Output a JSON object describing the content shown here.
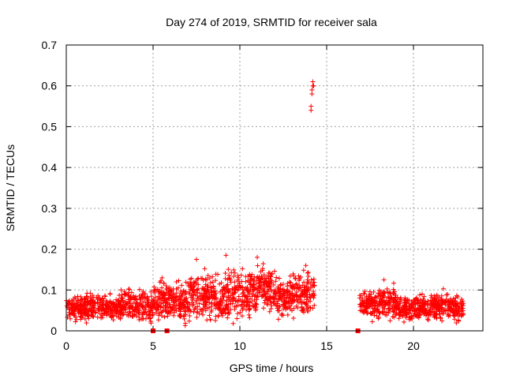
{
  "chart_data": {
    "type": "scatter",
    "title": "Day 274 of 2019, SRMTID for receiver sala",
    "xlabel": "GPS time / hours",
    "ylabel": "SRMTID / TECUs",
    "xlim": [
      0,
      24
    ],
    "ylim": [
      0,
      0.7
    ],
    "grid": true,
    "marker": "+",
    "series_color": "#ff0000",
    "x_ticks": [
      0,
      5,
      10,
      15,
      20
    ],
    "x_tick_labels": [
      "0",
      "5",
      "10",
      "15",
      "20"
    ],
    "y_ticks": [
      0,
      0.1,
      0.2,
      0.3,
      0.4,
      0.5,
      0.6,
      0.7
    ],
    "y_tick_labels": [
      "0",
      "0.1",
      "0.2",
      "0.3",
      "0.4",
      "0.5",
      "0.6",
      "0.7"
    ],
    "segments": [
      {
        "x_start": 0.0,
        "x_end": 1.0,
        "y_mean": 0.055,
        "y_spread": 0.025
      },
      {
        "x_start": 1.0,
        "x_end": 2.0,
        "y_mean": 0.06,
        "y_spread": 0.03
      },
      {
        "x_start": 2.0,
        "x_end": 3.0,
        "y_mean": 0.055,
        "y_spread": 0.025
      },
      {
        "x_start": 3.0,
        "x_end": 4.0,
        "y_mean": 0.065,
        "y_spread": 0.03
      },
      {
        "x_start": 4.0,
        "x_end": 5.0,
        "y_mean": 0.06,
        "y_spread": 0.035
      },
      {
        "x_start": 5.0,
        "x_end": 6.0,
        "y_mean": 0.075,
        "y_spread": 0.045
      },
      {
        "x_start": 6.0,
        "x_end": 7.0,
        "y_mean": 0.07,
        "y_spread": 0.04
      },
      {
        "x_start": 7.0,
        "x_end": 8.0,
        "y_mean": 0.085,
        "y_spread": 0.05
      },
      {
        "x_start": 8.0,
        "x_end": 9.0,
        "y_mean": 0.08,
        "y_spread": 0.045
      },
      {
        "x_start": 9.0,
        "x_end": 10.0,
        "y_mean": 0.09,
        "y_spread": 0.05
      },
      {
        "x_start": 10.0,
        "x_end": 11.0,
        "y_mean": 0.095,
        "y_spread": 0.05
      },
      {
        "x_start": 11.0,
        "x_end": 12.0,
        "y_mean": 0.1,
        "y_spread": 0.045
      },
      {
        "x_start": 12.0,
        "x_end": 13.0,
        "y_mean": 0.08,
        "y_spread": 0.04
      },
      {
        "x_start": 13.0,
        "x_end": 13.7,
        "y_mean": 0.09,
        "y_spread": 0.045
      },
      {
        "x_start": 13.7,
        "x_end": 14.3,
        "y_mean": 0.095,
        "y_spread": 0.04
      },
      {
        "x_start": 16.9,
        "x_end": 18.0,
        "y_mean": 0.065,
        "y_spread": 0.03
      },
      {
        "x_start": 18.0,
        "x_end": 19.0,
        "y_mean": 0.07,
        "y_spread": 0.035
      },
      {
        "x_start": 19.0,
        "x_end": 20.0,
        "y_mean": 0.055,
        "y_spread": 0.025
      },
      {
        "x_start": 20.0,
        "x_end": 21.0,
        "y_mean": 0.055,
        "y_spread": 0.025
      },
      {
        "x_start": 21.0,
        "x_end": 22.0,
        "y_mean": 0.06,
        "y_spread": 0.03
      },
      {
        "x_start": 22.0,
        "x_end": 22.9,
        "y_mean": 0.055,
        "y_spread": 0.025
      }
    ],
    "outliers": [
      {
        "x": 14.1,
        "y": 0.54
      },
      {
        "x": 14.1,
        "y": 0.55
      },
      {
        "x": 14.15,
        "y": 0.58
      },
      {
        "x": 14.15,
        "y": 0.59
      },
      {
        "x": 14.2,
        "y": 0.6
      },
      {
        "x": 14.2,
        "y": 0.61
      },
      {
        "x": 14.25,
        "y": 0.6
      },
      {
        "x": 9.2,
        "y": 0.185
      },
      {
        "x": 7.5,
        "y": 0.175
      },
      {
        "x": 11.0,
        "y": 0.18
      },
      {
        "x": 13.8,
        "y": 0.16
      },
      {
        "x": 18.3,
        "y": 0.125
      }
    ],
    "zero_markers": [
      {
        "x": 5.0,
        "y": 0
      },
      {
        "x": 5.8,
        "y": 0
      },
      {
        "x": 16.8,
        "y": 0
      }
    ]
  }
}
